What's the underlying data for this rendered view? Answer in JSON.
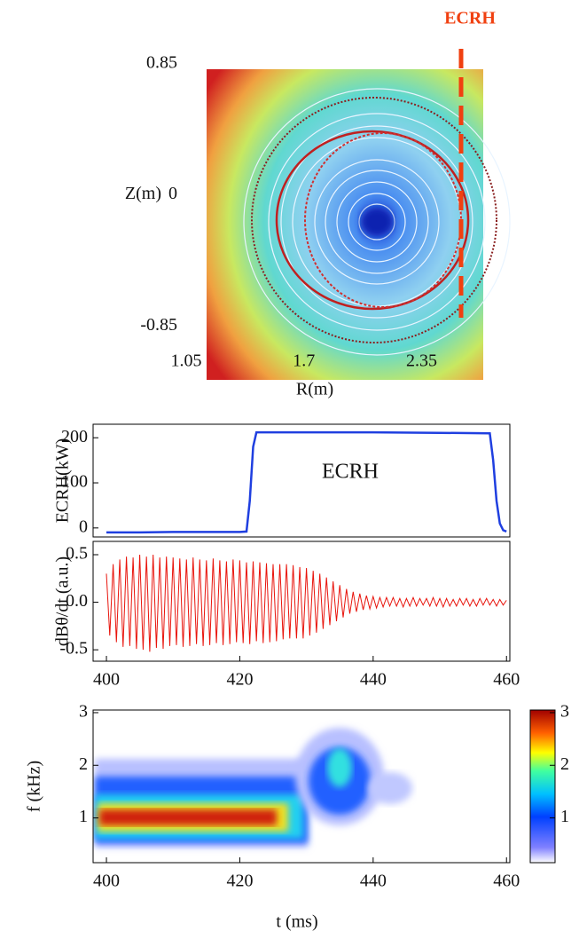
{
  "chart_data": [
    {
      "type": "image",
      "annotation": "ECRH",
      "xlabel": "R(m)",
      "ylabel": "Z(m)",
      "xlim": [
        1.05,
        2.69
      ],
      "xticks": [
        1.05,
        1.7,
        2.35
      ],
      "ylim": [
        -1.2,
        0.85
      ],
      "yticks": [
        0.85,
        0,
        -0.85
      ]
    },
    {
      "type": "line",
      "ylabel": "ECRH(kW)",
      "annotation": "ECRH",
      "color": "#1f3fe0",
      "xlim": [
        398,
        460.5
      ],
      "ylim": [
        -20,
        230
      ],
      "yticks": [
        0,
        100,
        200
      ],
      "x": [
        400,
        405,
        410,
        415,
        420,
        421,
        421.5,
        422,
        422.5,
        430,
        440,
        450,
        457.5,
        458,
        458.5,
        459,
        459.5,
        460
      ],
      "values": [
        -10,
        -10,
        -9,
        -9,
        -9,
        -8,
        60,
        180,
        212,
        212,
        212,
        211,
        210,
        150,
        60,
        10,
        -5,
        -8
      ]
    },
    {
      "type": "line",
      "ylabel": "dBθ/dt (a.u.)",
      "color": "#e8140c",
      "xlim": [
        398,
        460.5
      ],
      "xticks": [
        400,
        420,
        440,
        460
      ],
      "ylim": [
        -0.62,
        0.64
      ],
      "yticks": [
        0.5,
        {
          "value": 0,
          "label": "0.0"
        },
        -0.5
      ],
      "x": [
        400,
        400.5,
        401,
        401.5,
        402,
        402.5,
        403,
        403.5,
        404,
        404.5,
        405,
        405.5,
        406,
        406.5,
        407,
        407.5,
        408,
        408.5,
        409,
        409.5,
        410,
        410.5,
        411,
        411.5,
        412,
        412.5,
        413,
        413.5,
        414,
        414.5,
        415,
        415.5,
        416,
        416.5,
        417,
        417.5,
        418,
        418.5,
        419,
        419.5,
        420,
        420.5,
        421,
        421.5,
        422,
        422.5,
        423,
        423.5,
        424,
        424.5,
        425,
        425.5,
        426,
        426.5,
        427,
        427.5,
        428,
        428.5,
        429,
        429.5,
        430,
        430.5,
        431,
        431.5,
        432,
        432.5,
        433,
        433.5,
        434,
        434.5,
        435,
        435.5,
        436,
        436.5,
        437,
        437.5,
        438,
        438.5,
        439,
        439.5,
        440,
        440.5,
        441,
        441.5,
        442,
        442.5,
        443,
        443.5,
        444,
        444.5,
        445,
        445.5,
        446,
        446.5,
        447,
        447.5,
        448,
        448.5,
        449,
        449.5,
        450,
        450.5,
        451,
        451.5,
        452,
        452.5,
        453,
        453.5,
        454,
        454.5,
        455,
        455.5,
        456,
        456.5,
        457,
        457.5,
        458,
        458.5,
        459,
        459.5,
        460
      ],
      "values": [
        0.3,
        -0.35,
        0.4,
        -0.42,
        0.45,
        -0.47,
        0.48,
        -0.46,
        0.47,
        -0.49,
        0.5,
        -0.5,
        0.48,
        -0.52,
        0.5,
        -0.48,
        0.47,
        -0.49,
        0.48,
        -0.46,
        0.47,
        -0.45,
        0.46,
        -0.47,
        0.45,
        -0.46,
        0.47,
        -0.44,
        0.45,
        -0.46,
        0.44,
        -0.45,
        0.46,
        -0.43,
        0.44,
        -0.45,
        0.43,
        -0.44,
        0.45,
        -0.42,
        0.44,
        -0.43,
        0.42,
        -0.44,
        0.43,
        -0.41,
        0.42,
        -0.43,
        0.41,
        -0.42,
        0.4,
        -0.41,
        0.4,
        -0.39,
        0.4,
        -0.38,
        0.39,
        -0.38,
        0.37,
        -0.38,
        0.36,
        -0.35,
        0.33,
        -0.32,
        0.3,
        -0.28,
        0.26,
        -0.24,
        0.22,
        -0.2,
        0.18,
        -0.16,
        0.14,
        -0.12,
        0.11,
        -0.1,
        0.09,
        -0.08,
        0.07,
        -0.07,
        0.06,
        -0.06,
        0.05,
        -0.05,
        0.05,
        -0.04,
        0.05,
        -0.04,
        0.04,
        -0.05,
        0.04,
        -0.04,
        0.05,
        -0.04,
        0.04,
        -0.03,
        0.04,
        -0.04,
        0.05,
        -0.04,
        0.04,
        -0.05,
        0.04,
        -0.04,
        0.03,
        -0.04,
        0.04,
        -0.03,
        0.04,
        -0.04,
        0.03,
        -0.04,
        0.04,
        -0.03,
        0.04,
        -0.03,
        0.03,
        -0.04,
        0.03,
        -0.03,
        0.02
      ]
    },
    {
      "type": "contour",
      "ylabel": "f (kHz)",
      "xlabel": "t (ms)",
      "xlim": [
        398,
        460.5
      ],
      "xticks": [
        400,
        420,
        440,
        460
      ],
      "ylim": [
        0.15,
        3.05
      ],
      "yticks": [
        1,
        2,
        3
      ],
      "clim": [
        0.15,
        3.05
      ],
      "cticks": [
        1,
        2,
        3
      ]
    }
  ]
}
